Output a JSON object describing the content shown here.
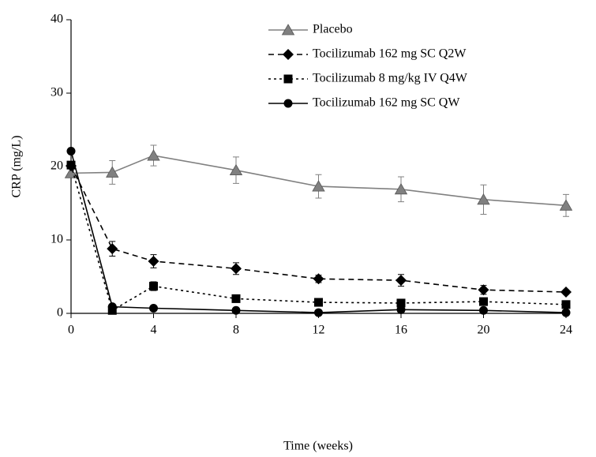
{
  "chart_data": {
    "type": "line",
    "x_label": "Time (weeks)",
    "y_label": "CRP (mg/L)",
    "x": [
      0,
      2,
      4,
      8,
      12,
      16,
      20,
      24
    ],
    "xlim": [
      0,
      24
    ],
    "xticks": [
      0,
      4,
      8,
      12,
      16,
      20,
      24
    ],
    "ylim": [
      0,
      40
    ],
    "yticks": [
      0,
      10,
      20,
      30,
      40
    ],
    "grid": false,
    "legend": "upper center",
    "series": [
      {
        "name": "Placebo",
        "color": "#808080",
        "marker": "triangle",
        "dash": "solid",
        "values": [
          19.1,
          19.2,
          21.5,
          19.5,
          17.3,
          16.9,
          15.5,
          14.7
        ],
        "errors": [
          null,
          1.6,
          1.4,
          1.8,
          1.6,
          1.7,
          2.0,
          1.5
        ]
      },
      {
        "name": "Tocilizumab 162 mg SC Q2W",
        "color": "#000000",
        "marker": "diamond",
        "dash": "dashed",
        "values": [
          20.1,
          8.8,
          7.1,
          6.1,
          4.7,
          4.5,
          3.2,
          2.9
        ],
        "errors": [
          null,
          1.0,
          0.9,
          0.8,
          0.5,
          0.8,
          0.6,
          0.3
        ]
      },
      {
        "name": "Tocilizumab 8 mg/kg IV Q4W",
        "color": "#000000",
        "marker": "square",
        "dash": "dotted",
        "values": [
          20.2,
          0.4,
          3.7,
          2.0,
          1.5,
          1.4,
          1.6,
          1.2
        ],
        "errors": [
          null,
          null,
          0.6,
          0.4,
          0.3,
          0.2,
          0.2,
          0.2
        ]
      },
      {
        "name": "Tocilizumab 162 mg SC QW",
        "color": "#000000",
        "marker": "circle",
        "dash": "solid",
        "values": [
          22.1,
          0.9,
          0.7,
          0.4,
          0.1,
          0.5,
          0.4,
          0.1
        ],
        "errors": [
          null,
          null,
          null,
          null,
          null,
          null,
          null,
          null
        ]
      }
    ]
  }
}
